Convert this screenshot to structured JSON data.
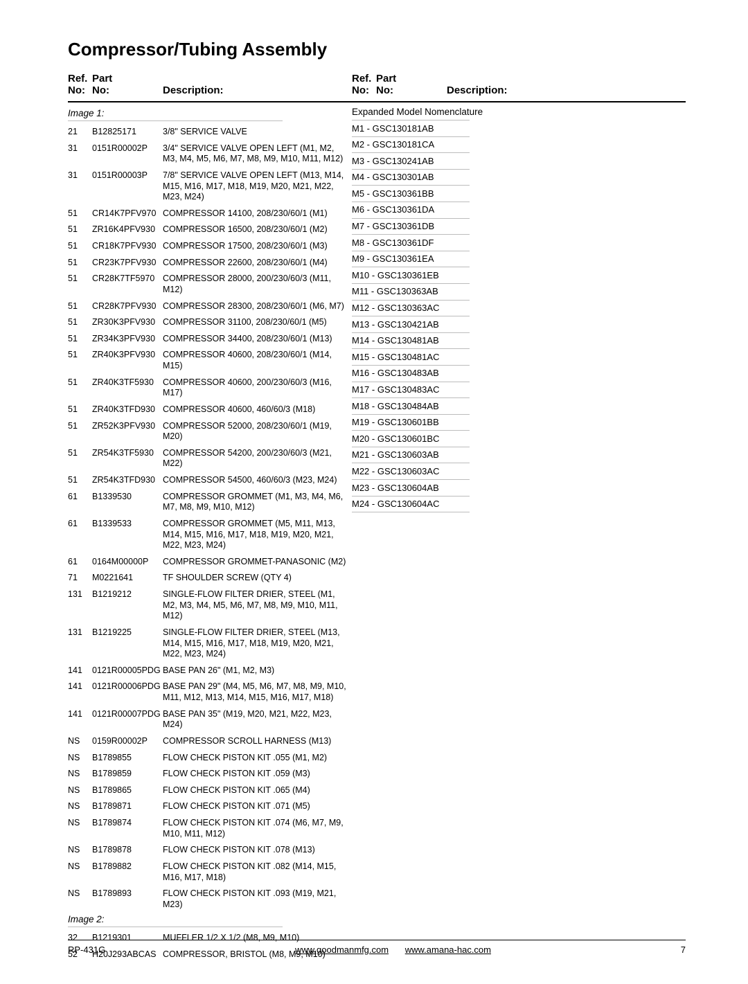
{
  "title": "Compressor/Tubing Assembly",
  "headers": {
    "ref_line1": "Ref.",
    "ref_line2": "No:",
    "part_line1": "Part",
    "part_line2": "No:",
    "desc": "Description:"
  },
  "sections": {
    "image1": {
      "label": "Image 1:"
    },
    "image2": {
      "label": "Image 2:"
    }
  },
  "rows_image1": [
    {
      "ref": "21",
      "part": "B12825171",
      "desc": "3/8\" SERVICE VALVE"
    },
    {
      "ref": "31",
      "part": "0151R00002P",
      "desc": "3/4\" SERVICE VALVE OPEN LEFT (M1, M2, M3, M4, M5, M6, M7, M8, M9, M10, M11, M12)"
    },
    {
      "ref": "31",
      "part": "0151R00003P",
      "desc": "7/8\" SERVICE VALVE OPEN LEFT (M13, M14, M15, M16, M17, M18, M19, M20, M21, M22, M23, M24)"
    },
    {
      "ref": "51",
      "part": "CR14K7PFV970",
      "desc": "COMPRESSOR 14100, 208/230/60/1 (M1)"
    },
    {
      "ref": "51",
      "part": "ZR16K4PFV930",
      "desc": "COMPRESSOR 16500, 208/230/60/1 (M2)"
    },
    {
      "ref": "51",
      "part": "CR18K7PFV930",
      "desc": "COMPRESSOR 17500, 208/230/60/1 (M3)"
    },
    {
      "ref": "51",
      "part": "CR23K7PFV930",
      "desc": "COMPRESSOR 22600, 208/230/60/1 (M4)"
    },
    {
      "ref": "51",
      "part": "CR28K7TF5970",
      "desc": "COMPRESSOR 28000, 200/230/60/3 (M11, M12)"
    },
    {
      "ref": "51",
      "part": "CR28K7PFV930",
      "desc": "COMPRESSOR 28300, 208/230/60/1 (M6, M7)"
    },
    {
      "ref": "51",
      "part": "ZR30K3PFV930",
      "desc": "COMPRESSOR 31100, 208/230/60/1 (M5)"
    },
    {
      "ref": "51",
      "part": "ZR34K3PFV930",
      "desc": "COMPRESSOR 34400, 208/230/60/1 (M13)"
    },
    {
      "ref": "51",
      "part": "ZR40K3PFV930",
      "desc": "COMPRESSOR 40600, 208/230/60/1 (M14, M15)"
    },
    {
      "ref": "51",
      "part": "ZR40K3TF5930",
      "desc": "COMPRESSOR 40600, 200/230/60/3 (M16, M17)"
    },
    {
      "ref": "51",
      "part": "ZR40K3TFD930",
      "desc": "COMPRESSOR 40600, 460/60/3 (M18)"
    },
    {
      "ref": "51",
      "part": "ZR52K3PFV930",
      "desc": "COMPRESSOR 52000, 208/230/60/1 (M19, M20)"
    },
    {
      "ref": "51",
      "part": "ZR54K3TF5930",
      "desc": "COMPRESSOR 54200, 200/230/60/3 (M21, M22)"
    },
    {
      "ref": "51",
      "part": "ZR54K3TFD930",
      "desc": "COMPRESSOR 54500, 460/60/3 (M23, M24)"
    },
    {
      "ref": "61",
      "part": "B1339530",
      "desc": "COMPRESSOR GROMMET (M1, M3, M4, M6, M7, M8, M9, M10, M12)"
    },
    {
      "ref": "61",
      "part": "B1339533",
      "desc": "COMPRESSOR GROMMET (M5, M11, M13, M14, M15, M16, M17, M18, M19, M20, M21, M22, M23, M24)"
    },
    {
      "ref": "61",
      "part": "0164M00000P",
      "desc": "COMPRESSOR GROMMET-PANASONIC (M2)"
    },
    {
      "ref": "71",
      "part": "M0221641",
      "desc": "TF SHOULDER SCREW (QTY 4)"
    },
    {
      "ref": "131",
      "part": "B1219212",
      "desc": "SINGLE-FLOW FILTER DRIER, STEEL (M1, M2, M3, M4, M5, M6, M7, M8, M9, M10, M11, M12)"
    },
    {
      "ref": "131",
      "part": "B1219225",
      "desc": "SINGLE-FLOW FILTER DRIER, STEEL (M13, M14, M15, M16, M17, M18, M19, M20, M21, M22, M23, M24)"
    },
    {
      "ref": "141",
      "part": "0121R00005PDG",
      "desc": "BASE PAN 26\" (M1, M2, M3)"
    },
    {
      "ref": "141",
      "part": "0121R00006PDG",
      "desc": "BASE PAN 29\" (M4, M5, M6, M7, M8, M9, M10, M11, M12, M13, M14, M15, M16, M17, M18)"
    },
    {
      "ref": "141",
      "part": "0121R00007PDG",
      "desc": "BASE PAN 35\" (M19, M20, M21, M22, M23, M24)"
    },
    {
      "ref": "NS",
      "part": "0159R00002P",
      "desc": "COMPRESSOR SCROLL HARNESS (M13)"
    },
    {
      "ref": "NS",
      "part": "B1789855",
      "desc": "FLOW CHECK PISTON KIT .055 (M1, M2)"
    },
    {
      "ref": "NS",
      "part": "B1789859",
      "desc": "FLOW CHECK PISTON KIT .059 (M3)"
    },
    {
      "ref": "NS",
      "part": "B1789865",
      "desc": "FLOW CHECK PISTON KIT .065 (M4)"
    },
    {
      "ref": "NS",
      "part": "B1789871",
      "desc": "FLOW CHECK PISTON KIT .071 (M5)"
    },
    {
      "ref": "NS",
      "part": "B1789874",
      "desc": "FLOW CHECK PISTON KIT .074 (M6, M7, M9, M10, M11, M12)"
    },
    {
      "ref": "NS",
      "part": "B1789878",
      "desc": "FLOW CHECK PISTON KIT .078 (M13)"
    },
    {
      "ref": "NS",
      "part": "B1789882",
      "desc": "FLOW CHECK PISTON KIT .082 (M14, M15, M16, M17, M18)"
    },
    {
      "ref": "NS",
      "part": "B1789893",
      "desc": "FLOW CHECK PISTON KIT .093 (M19, M21, M23)"
    }
  ],
  "rows_image2": [
    {
      "ref": "32",
      "part": "B1219301",
      "desc": "MUFFLER 1/2 X 1/2 (M8, M9, M10)"
    },
    {
      "ref": "52",
      "part": "H20J293ABCAS",
      "desc": "COMPRESSOR, BRISTOL (M8, M9, M10)"
    }
  ],
  "nomenclature_header": "Expanded Model Nomenclature",
  "nomenclature": [
    "M1 - GSC130181AB",
    "M2 - GSC130181CA",
    "M3 - GSC130241AB",
    "M4 - GSC130301AB",
    "M5 - GSC130361BB",
    "M6 - GSC130361DA",
    "M7 - GSC130361DB",
    "M8 - GSC130361DF",
    "M9 - GSC130361EA",
    "M10 - GSC130361EB",
    "M11 - GSC130363AB",
    "M12 - GSC130363AC",
    "M13 - GSC130421AB",
    "M14 - GSC130481AB",
    "M15 - GSC130481AC",
    "M16 - GSC130483AB",
    "M17 - GSC130483AC",
    "M18 - GSC130484AB",
    "M19 - GSC130601BB",
    "M20 - GSC130601BC",
    "M21 - GSC130603AB",
    "M22 - GSC130603AC",
    "M23 - GSC130604AB",
    "M24 - GSC130604AC"
  ],
  "footer": {
    "doc_id": "RP-431G",
    "link1": "www.goodmanmfg.com",
    "link2": "www.amana-hac.com",
    "page": "7"
  }
}
